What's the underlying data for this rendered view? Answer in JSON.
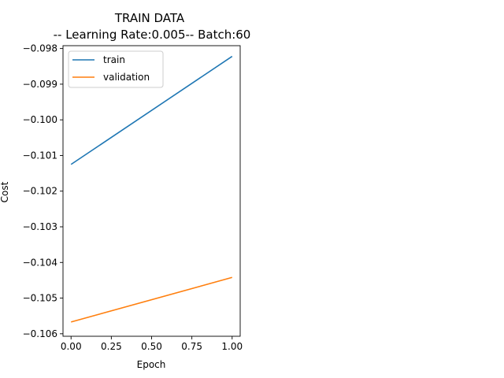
{
  "chart_data": {
    "type": "line",
    "title": "TRAIN DATA",
    "subtitle": "-- Learning Rate:0.005-- Batch:60",
    "xlabel": "Epoch",
    "ylabel": "Cost",
    "xlim": [
      -0.05,
      1.05
    ],
    "ylim": [
      -0.10607,
      -0.09792
    ],
    "x_ticks": [
      0.0,
      0.25,
      0.5,
      0.75,
      1.0
    ],
    "x_tick_labels": [
      "0.00",
      "0.25",
      "0.50",
      "0.75",
      "1.00"
    ],
    "y_ticks": [
      -0.106,
      -0.105,
      -0.104,
      -0.103,
      -0.102,
      -0.101,
      -0.1,
      -0.099,
      -0.098
    ],
    "y_tick_labels": [
      "−0.106",
      "−0.105",
      "−0.104",
      "−0.103",
      "−0.102",
      "−0.101",
      "−0.100",
      "−0.099",
      "−0.098"
    ],
    "grid": false,
    "legend_position": "top-left",
    "series": [
      {
        "name": "train",
        "color": "#1f77b4",
        "x": [
          0,
          1
        ],
        "y": [
          -0.10125,
          -0.09822
        ]
      },
      {
        "name": "validation",
        "color": "#ff7f0e",
        "x": [
          0,
          1
        ],
        "y": [
          -0.10567,
          -0.10442
        ]
      }
    ]
  }
}
